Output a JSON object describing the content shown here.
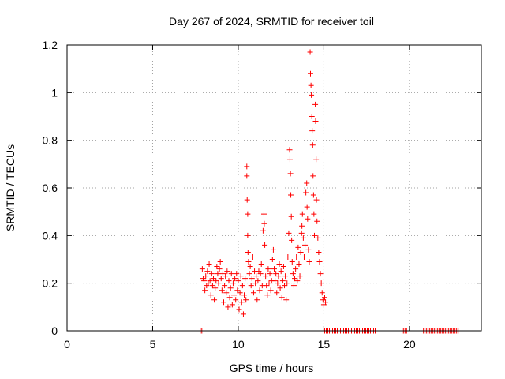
{
  "chart_data": {
    "type": "scatter",
    "title": "Day 267 of 2024, SRMTID for receiver toil",
    "xlabel": "GPS time / hours",
    "ylabel": "SRMTID / TECUs",
    "xlim": [
      0,
      24.2
    ],
    "ylim": [
      0,
      1.2
    ],
    "xticks": [
      0,
      5,
      10,
      15,
      20
    ],
    "xtick_labels": [
      "0",
      "5",
      "10",
      "15",
      "20"
    ],
    "yticks": [
      0,
      0.2,
      0.4,
      0.6,
      0.8,
      1.0,
      1.2
    ],
    "ytick_labels": [
      "0",
      "0.2",
      "0.4",
      "0.6",
      "0.8",
      "1",
      "1.2"
    ],
    "grid": true,
    "marker": "+",
    "series": [
      {
        "name": "SRMTID",
        "color": "#ff0000",
        "points": [
          [
            7.9,
            0.26
          ],
          [
            7.95,
            0.22
          ],
          [
            8.0,
            0.21
          ],
          [
            8.05,
            0.17
          ],
          [
            8.1,
            0.23
          ],
          [
            8.15,
            0.19
          ],
          [
            8.2,
            0.25
          ],
          [
            8.25,
            0.2
          ],
          [
            8.3,
            0.28
          ],
          [
            8.35,
            0.21
          ],
          [
            8.4,
            0.15
          ],
          [
            8.45,
            0.24
          ],
          [
            8.5,
            0.19
          ],
          [
            8.55,
            0.22
          ],
          [
            8.6,
            0.13
          ],
          [
            8.65,
            0.18
          ],
          [
            8.7,
            0.21
          ],
          [
            8.75,
            0.27
          ],
          [
            8.8,
            0.24
          ],
          [
            8.85,
            0.2
          ],
          [
            8.9,
            0.26
          ],
          [
            8.95,
            0.29
          ],
          [
            9.0,
            0.22
          ],
          [
            9.05,
            0.17
          ],
          [
            9.1,
            0.24
          ],
          [
            9.15,
            0.12
          ],
          [
            9.2,
            0.19
          ],
          [
            9.25,
            0.23
          ],
          [
            9.3,
            0.16
          ],
          [
            9.35,
            0.25
          ],
          [
            9.4,
            0.1
          ],
          [
            9.45,
            0.21
          ],
          [
            9.5,
            0.14
          ],
          [
            9.55,
            0.18
          ],
          [
            9.6,
            0.24
          ],
          [
            9.65,
            0.11
          ],
          [
            9.7,
            0.2
          ],
          [
            9.75,
            0.15
          ],
          [
            9.8,
            0.22
          ],
          [
            9.85,
            0.13
          ],
          [
            9.9,
            0.24
          ],
          [
            9.95,
            0.17
          ],
          [
            10.0,
            0.21
          ],
          [
            10.05,
            0.09
          ],
          [
            10.1,
            0.16
          ],
          [
            10.15,
            0.23
          ],
          [
            10.2,
            0.12
          ],
          [
            10.25,
            0.19
          ],
          [
            10.3,
            0.07
          ],
          [
            10.35,
            0.15
          ],
          [
            10.4,
            0.22
          ],
          [
            10.45,
            0.13
          ],
          [
            10.5,
            0.69
          ],
          [
            10.5,
            0.65
          ],
          [
            10.52,
            0.55
          ],
          [
            10.55,
            0.49
          ],
          [
            10.55,
            0.4
          ],
          [
            10.57,
            0.33
          ],
          [
            10.6,
            0.29
          ],
          [
            10.65,
            0.24
          ],
          [
            10.7,
            0.27
          ],
          [
            10.75,
            0.19
          ],
          [
            10.8,
            0.22
          ],
          [
            10.85,
            0.31
          ],
          [
            10.9,
            0.16
          ],
          [
            10.95,
            0.25
          ],
          [
            11.0,
            0.2
          ],
          [
            11.05,
            0.23
          ],
          [
            11.1,
            0.13
          ],
          [
            11.15,
            0.21
          ],
          [
            11.2,
            0.25
          ],
          [
            11.25,
            0.17
          ],
          [
            11.3,
            0.24
          ],
          [
            11.35,
            0.28
          ],
          [
            11.4,
            0.19
          ],
          [
            11.45,
            0.42
          ],
          [
            11.5,
            0.49
          ],
          [
            11.52,
            0.45
          ],
          [
            11.55,
            0.36
          ],
          [
            11.6,
            0.23
          ],
          [
            11.65,
            0.19
          ],
          [
            11.7,
            0.15
          ],
          [
            11.75,
            0.26
          ],
          [
            11.8,
            0.2
          ],
          [
            11.85,
            0.24
          ],
          [
            11.9,
            0.17
          ],
          [
            11.95,
            0.21
          ],
          [
            12.0,
            0.3
          ],
          [
            12.05,
            0.34
          ],
          [
            12.1,
            0.26
          ],
          [
            12.15,
            0.21
          ],
          [
            12.2,
            0.24
          ],
          [
            12.25,
            0.16
          ],
          [
            12.3,
            0.2
          ],
          [
            12.35,
            0.23
          ],
          [
            12.4,
            0.28
          ],
          [
            12.45,
            0.18
          ],
          [
            12.5,
            0.25
          ],
          [
            12.55,
            0.14
          ],
          [
            12.6,
            0.21
          ],
          [
            12.65,
            0.27
          ],
          [
            12.7,
            0.19
          ],
          [
            12.75,
            0.23
          ],
          [
            12.8,
            0.13
          ],
          [
            12.85,
            0.2
          ],
          [
            12.9,
            0.31
          ],
          [
            12.95,
            0.41
          ],
          [
            13.0,
            0.76
          ],
          [
            13.02,
            0.72
          ],
          [
            13.05,
            0.66
          ],
          [
            13.07,
            0.57
          ],
          [
            13.1,
            0.48
          ],
          [
            13.12,
            0.38
          ],
          [
            13.15,
            0.29
          ],
          [
            13.2,
            0.24
          ],
          [
            13.25,
            0.19
          ],
          [
            13.3,
            0.22
          ],
          [
            13.35,
            0.26
          ],
          [
            13.4,
            0.31
          ],
          [
            13.45,
            0.21
          ],
          [
            13.5,
            0.35
          ],
          [
            13.55,
            0.28
          ],
          [
            13.6,
            0.23
          ],
          [
            13.65,
            0.33
          ],
          [
            13.7,
            0.41
          ],
          [
            13.72,
            0.44
          ],
          [
            13.75,
            0.49
          ],
          [
            13.8,
            0.39
          ],
          [
            13.85,
            0.31
          ],
          [
            13.9,
            0.36
          ],
          [
            13.95,
            0.58
          ],
          [
            14.0,
            0.62
          ],
          [
            14.02,
            0.52
          ],
          [
            14.05,
            0.47
          ],
          [
            14.1,
            0.34
          ],
          [
            14.15,
            0.29
          ],
          [
            14.2,
            1.17
          ],
          [
            14.22,
            1.08
          ],
          [
            14.25,
            1.03
          ],
          [
            14.27,
            0.99
          ],
          [
            14.3,
            0.9
          ],
          [
            14.32,
            0.84
          ],
          [
            14.35,
            0.78
          ],
          [
            14.37,
            0.65
          ],
          [
            14.4,
            0.57
          ],
          [
            14.42,
            0.49
          ],
          [
            14.45,
            0.4
          ],
          [
            14.5,
            0.95
          ],
          [
            14.52,
            0.88
          ],
          [
            14.55,
            0.72
          ],
          [
            14.57,
            0.55
          ],
          [
            14.6,
            0.46
          ],
          [
            14.65,
            0.39
          ],
          [
            14.7,
            0.33
          ],
          [
            14.75,
            0.29
          ],
          [
            14.8,
            0.24
          ],
          [
            14.85,
            0.2
          ],
          [
            14.9,
            0.16
          ],
          [
            14.95,
            0.13
          ],
          [
            15.0,
            0.11
          ],
          [
            15.05,
            0.14
          ],
          [
            15.1,
            0.12
          ]
        ]
      }
    ],
    "zero_segments": [
      [
        7.78,
        7.88
      ],
      [
        15.05,
        18.05
      ],
      [
        19.65,
        19.9
      ],
      [
        20.82,
        22.92
      ]
    ]
  }
}
